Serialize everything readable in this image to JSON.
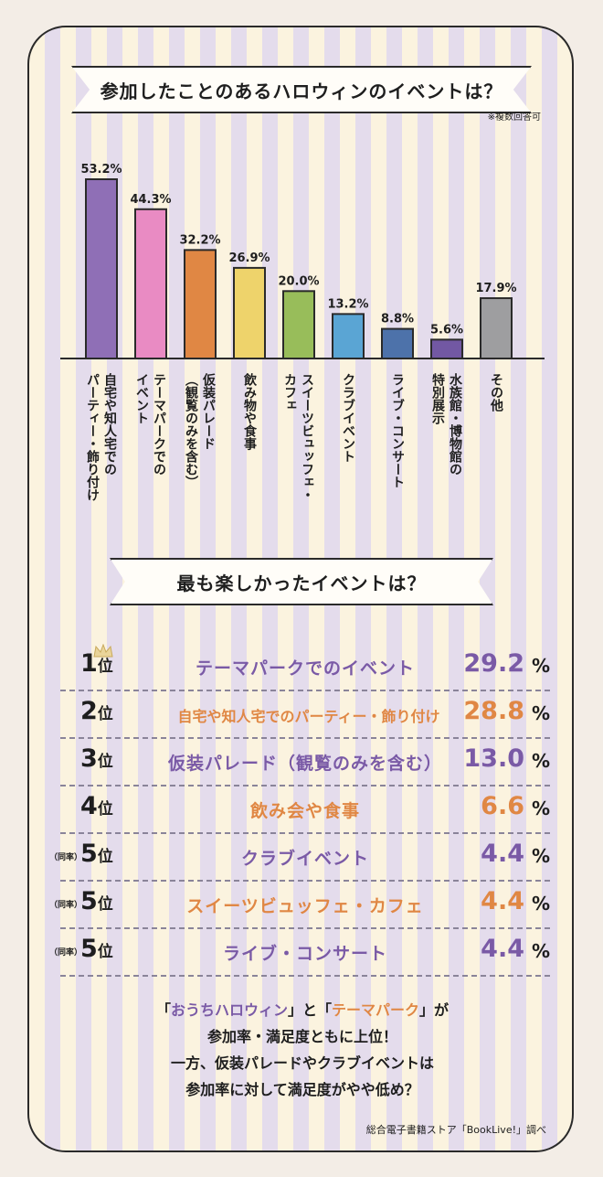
{
  "chart_data": {
    "type": "bar",
    "title": "参加したことのあるハロウィンのイベントは？",
    "note": "※複数回答可",
    "categories": [
      [
        "自宅や知人宅での",
        "パーティー・飾り付け"
      ],
      [
        "テーマパークでの",
        "イベント"
      ],
      [
        "仮装パレード",
        "（観覧のみを含む）"
      ],
      [
        "飲み物や食事"
      ],
      [
        "スイーツビュッフェ・",
        "カフェ"
      ],
      [
        "クラブイベント"
      ],
      [
        "ライブ・コンサート"
      ],
      [
        "水族館・博物館の",
        "特別展示"
      ],
      [
        "その他"
      ]
    ],
    "values": [
      53.2,
      44.3,
      32.2,
      26.9,
      20.0,
      13.2,
      8.8,
      5.6,
      17.9
    ],
    "value_labels": [
      "53.2%",
      "44.3%",
      "32.2%",
      "26.9%",
      "20.0%",
      "13.2%",
      "8.8%",
      "5.6%",
      "17.9%"
    ],
    "colors": [
      "#8f6fb6",
      "#e98bc3",
      "#e08744",
      "#eed36b",
      "#98bd5a",
      "#5aa5d4",
      "#4d72aa",
      "#7258a3",
      "#9e9ea0"
    ],
    "ylim": [
      0,
      53.2
    ]
  },
  "ranking": {
    "title": "最も楽しかったイベントは？",
    "unit": "位",
    "percent": "%",
    "tie_label": "（同率）",
    "items": [
      {
        "rank": "1",
        "label": "テーマパークでのイベント",
        "value": "29.2",
        "color": "#7a5aa6",
        "tie": ""
      },
      {
        "rank": "2",
        "label": "自宅や知人宅でのパーティー・飾り付け",
        "value": "28.8",
        "color": "#e08744",
        "tie": ""
      },
      {
        "rank": "3",
        "label": "仮装パレード（観覧のみを含む）",
        "value": "13.0",
        "color": "#7a5aa6",
        "tie": ""
      },
      {
        "rank": "4",
        "label": "飲み会や食事",
        "value": "6.6",
        "color": "#e08744",
        "tie": ""
      },
      {
        "rank": "5",
        "label": "クラブイベント",
        "value": "4.4",
        "color": "#7a5aa6",
        "tie": "（同率）"
      },
      {
        "rank": "5",
        "label": "スイーツビュッフェ・カフェ",
        "value": "4.4",
        "color": "#e08744",
        "tie": "（同率）"
      },
      {
        "rank": "5",
        "label": "ライブ・コンサート",
        "value": "4.4",
        "color": "#7a5aa6",
        "tie": "（同率）"
      }
    ]
  },
  "summary": {
    "line1_a": "「",
    "line1_b": "おうちハロウィン",
    "line1_c": "」と「",
    "line1_d": "テーマパーク",
    "line1_e": "」が",
    "line2": "参加率・満足度ともに上位！",
    "line3": "一方、仮装パレードやクラブイベントは",
    "line4": "参加率に対して満足度がやや低め？"
  },
  "source": "総合電子書籍ストア「BookLive!」調べ",
  "colors": {
    "purple": "#7a5aa6",
    "orange": "#e08744"
  }
}
